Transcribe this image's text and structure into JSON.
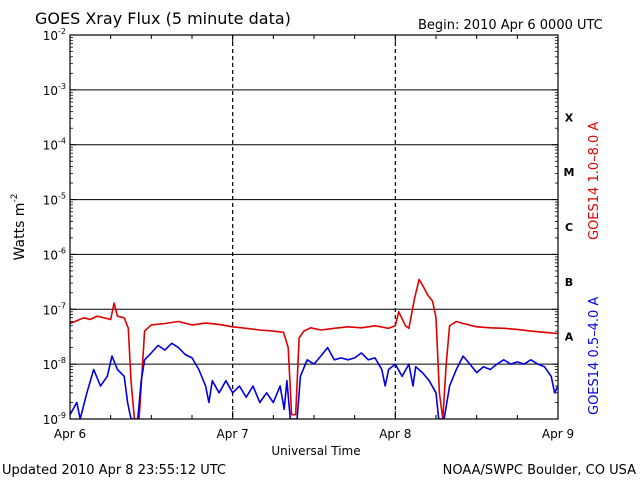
{
  "chart_data": {
    "type": "line",
    "title": "GOES Xray Flux (5 minute data)",
    "begin_text": "Begin:  2010 Apr 6 0000 UTC",
    "xlabel": "Universal Time",
    "ylabel": "Watts m",
    "ylabel_sup": "-2",
    "updated_text": "Updated 2010 Apr  8 23:55:12 UTC",
    "credit_text": "NOAA/SWPC Boulder, CO USA",
    "y_scale": "log",
    "ylim": [
      1e-09,
      0.01
    ],
    "xlim": [
      0,
      72
    ],
    "x_unit": "hours since 2010 Apr 6 0000 UTC",
    "x_ticks": [
      {
        "x": 0,
        "label": "Apr 6"
      },
      {
        "x": 24,
        "label": "Apr 7"
      },
      {
        "x": 48,
        "label": "Apr 8"
      },
      {
        "x": 72,
        "label": "Apr 9"
      }
    ],
    "y_ticks": [
      {
        "value": 1e-09,
        "base": "10",
        "exp": "-9"
      },
      {
        "value": 1e-08,
        "base": "10",
        "exp": "-8"
      },
      {
        "value": 1e-07,
        "base": "10",
        "exp": "-7"
      },
      {
        "value": 1e-06,
        "base": "10",
        "exp": "-6"
      },
      {
        "value": 1e-05,
        "base": "10",
        "exp": "-5"
      },
      {
        "value": 0.0001,
        "base": "10",
        "exp": "-4"
      },
      {
        "value": 0.001,
        "base": "10",
        "exp": "-3"
      },
      {
        "value": 0.01,
        "base": "10",
        "exp": "-2"
      }
    ],
    "flare_classes": [
      {
        "label": "A",
        "band": [
          1e-08,
          1e-07
        ]
      },
      {
        "label": "B",
        "band": [
          1e-07,
          1e-06
        ]
      },
      {
        "label": "C",
        "band": [
          1e-06,
          1e-05
        ]
      },
      {
        "label": "M",
        "band": [
          1e-05,
          0.0001
        ]
      },
      {
        "label": "X",
        "band": [
          0.0001,
          0.001
        ]
      }
    ],
    "grid": "horizontal lines at decades 1e-8 to 1e-3; dashed vertical lines at day boundaries",
    "series": [
      {
        "name": "GOES14 1.0–8.0 A",
        "color": "#e00000",
        "points": [
          [
            0,
            5.5e-08
          ],
          [
            1,
            6.2e-08
          ],
          [
            2,
            7e-08
          ],
          [
            3,
            6.5e-08
          ],
          [
            4,
            7.5e-08
          ],
          [
            6,
            6.5e-08
          ],
          [
            6.5,
            1.3e-07
          ],
          [
            7,
            7.5e-08
          ],
          [
            8,
            7e-08
          ],
          [
            8.6,
            4.5e-08
          ],
          [
            9,
            5e-09
          ],
          [
            9.5,
            1e-09
          ],
          [
            10.2,
            1e-09
          ],
          [
            10.6,
            6e-09
          ],
          [
            11,
            4e-08
          ],
          [
            12,
            5.2e-08
          ],
          [
            14,
            5.5e-08
          ],
          [
            16,
            6e-08
          ],
          [
            18,
            5.2e-08
          ],
          [
            20,
            5.6e-08
          ],
          [
            22,
            5.3e-08
          ],
          [
            24,
            4.8e-08
          ],
          [
            26,
            4.5e-08
          ],
          [
            28,
            4.2e-08
          ],
          [
            30,
            4e-08
          ],
          [
            31.5,
            3.8e-08
          ],
          [
            32.2,
            2e-08
          ],
          [
            32.7,
            1.2e-09
          ],
          [
            33.3,
            1.2e-09
          ],
          [
            33.8,
            3e-08
          ],
          [
            34.5,
            4e-08
          ],
          [
            35.5,
            4.6e-08
          ],
          [
            37,
            4.2e-08
          ],
          [
            39,
            4.5e-08
          ],
          [
            41,
            4.8e-08
          ],
          [
            43,
            4.6e-08
          ],
          [
            45,
            5e-08
          ],
          [
            47,
            4.5e-08
          ],
          [
            48,
            5e-08
          ],
          [
            48.5,
            9e-08
          ],
          [
            49.5,
            5e-08
          ],
          [
            50,
            4.5e-08
          ],
          [
            50.8,
            1.5e-07
          ],
          [
            51.5,
            3.5e-07
          ],
          [
            52.2,
            2.5e-07
          ],
          [
            52.8,
            1.8e-07
          ],
          [
            53.5,
            1.4e-07
          ],
          [
            54,
            7e-08
          ],
          [
            54.5,
            3e-09
          ],
          [
            55,
            1e-09
          ],
          [
            55.5,
            1e-08
          ],
          [
            56,
            5e-08
          ],
          [
            57,
            6e-08
          ],
          [
            58,
            5.5e-08
          ],
          [
            60,
            4.8e-08
          ],
          [
            62,
            4.6e-08
          ],
          [
            64,
            4.5e-08
          ],
          [
            66,
            4.3e-08
          ],
          [
            68,
            4e-08
          ],
          [
            70,
            3.8e-08
          ],
          [
            72,
            3.6e-08
          ]
        ]
      },
      {
        "name": "GOES14 0.5–4.0 A",
        "color": "#0000e0",
        "points": [
          [
            0,
            1.2e-09
          ],
          [
            1,
            2e-09
          ],
          [
            1.5,
            1e-09
          ],
          [
            2.5,
            3e-09
          ],
          [
            3.5,
            8e-09
          ],
          [
            4.5,
            4e-09
          ],
          [
            5.5,
            6e-09
          ],
          [
            6.2,
            1.4e-08
          ],
          [
            7,
            8e-09
          ],
          [
            8,
            6e-09
          ],
          [
            8.5,
            2e-09
          ],
          [
            9,
            1e-09
          ],
          [
            10,
            1e-09
          ],
          [
            10.5,
            5e-09
          ],
          [
            11,
            1.2e-08
          ],
          [
            12,
            1.6e-08
          ],
          [
            13,
            2.2e-08
          ],
          [
            14,
            1.8e-08
          ],
          [
            15,
            2.4e-08
          ],
          [
            16,
            2e-08
          ],
          [
            17,
            1.5e-08
          ],
          [
            18,
            1.3e-08
          ],
          [
            19,
            8e-09
          ],
          [
            20,
            4e-09
          ],
          [
            20.5,
            2e-09
          ],
          [
            21,
            5e-09
          ],
          [
            22,
            3e-09
          ],
          [
            23,
            5e-09
          ],
          [
            24,
            3e-09
          ],
          [
            25,
            4e-09
          ],
          [
            26,
            2.5e-09
          ],
          [
            27,
            4e-09
          ],
          [
            28,
            2e-09
          ],
          [
            29,
            3e-09
          ],
          [
            30,
            2e-09
          ],
          [
            31,
            4e-09
          ],
          [
            31.6,
            1.5e-09
          ],
          [
            32,
            5e-09
          ],
          [
            32.5,
            1e-09
          ],
          [
            33.5,
            1e-09
          ],
          [
            34,
            6e-09
          ],
          [
            35,
            1.2e-08
          ],
          [
            36,
            1e-08
          ],
          [
            37,
            1.4e-08
          ],
          [
            38,
            2e-08
          ],
          [
            39,
            1.2e-08
          ],
          [
            40,
            1.3e-08
          ],
          [
            41,
            1.2e-08
          ],
          [
            42,
            1.3e-08
          ],
          [
            43,
            1.6e-08
          ],
          [
            44,
            1.2e-08
          ],
          [
            45,
            1.3e-08
          ],
          [
            46,
            8e-09
          ],
          [
            46.5,
            4e-09
          ],
          [
            47,
            8e-09
          ],
          [
            48,
            1e-08
          ],
          [
            49,
            6e-09
          ],
          [
            50,
            1e-08
          ],
          [
            50.6,
            4e-09
          ],
          [
            51,
            9e-09
          ],
          [
            52,
            7e-09
          ],
          [
            53,
            5e-09
          ],
          [
            54,
            3e-09
          ],
          [
            54.4,
            1e-09
          ],
          [
            55.2,
            1e-09
          ],
          [
            56,
            4e-09
          ],
          [
            57,
            8e-09
          ],
          [
            58,
            1.4e-08
          ],
          [
            59,
            1e-08
          ],
          [
            60,
            7e-09
          ],
          [
            61,
            9e-09
          ],
          [
            62,
            8e-09
          ],
          [
            63,
            1e-08
          ],
          [
            64,
            1.2e-08
          ],
          [
            65,
            1e-08
          ],
          [
            66,
            1.1e-08
          ],
          [
            67,
            1e-08
          ],
          [
            68,
            1.2e-08
          ],
          [
            69,
            1e-08
          ],
          [
            70,
            9e-09
          ],
          [
            71,
            6e-09
          ],
          [
            71.5,
            3e-09
          ],
          [
            72,
            4e-09
          ]
        ]
      }
    ]
  }
}
